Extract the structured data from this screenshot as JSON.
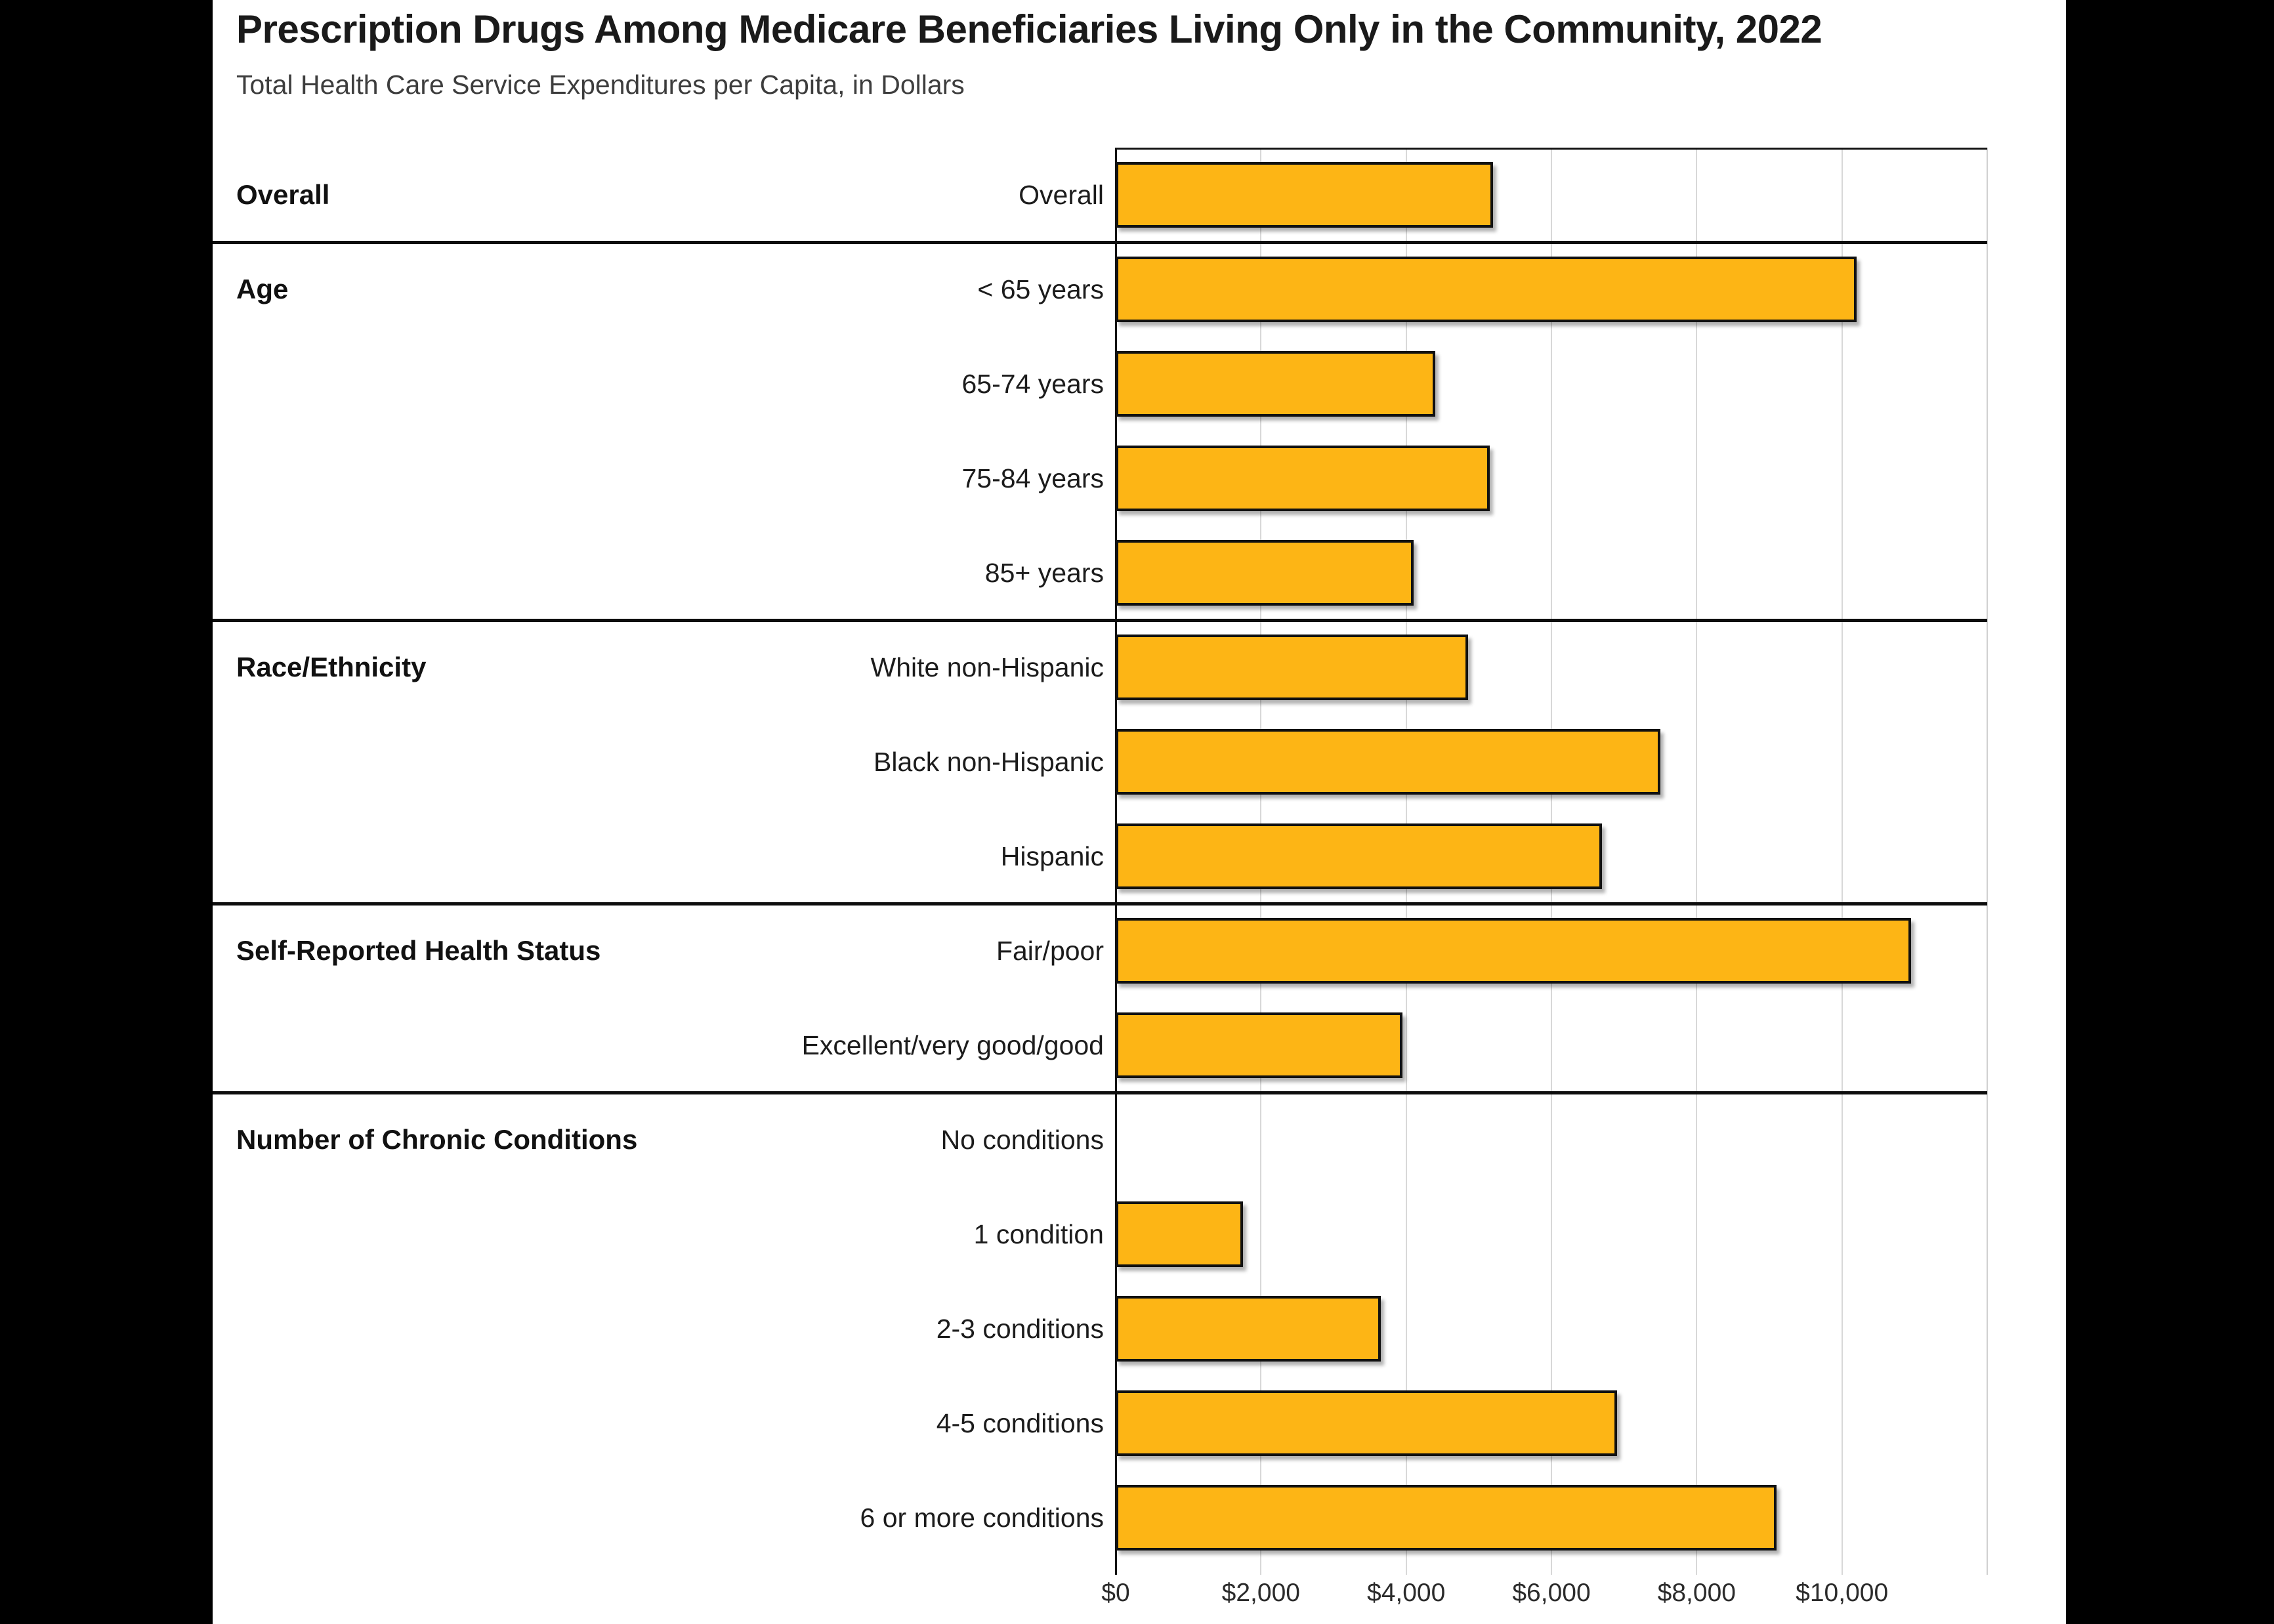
{
  "header": {
    "title": "Prescription Drugs Among Medicare Beneficiaries Living Only in the Community, 2022",
    "subtitle": "Total Health Care Service Expenditures per Capita, in Dollars"
  },
  "chart_data": {
    "type": "bar",
    "orientation": "horizontal",
    "title": "Prescription Drugs Among Medicare Beneficiaries Living Only in the Community, 2022",
    "subtitle": "Total Health Care Service Expenditures per Capita, in Dollars",
    "unit": "dollars per capita",
    "xlim": [
      0,
      12000
    ],
    "grid": true,
    "x_ticks": [
      {
        "value": 0,
        "label": "$0"
      },
      {
        "value": 2000,
        "label": "$2,000"
      },
      {
        "value": 4000,
        "label": "$4,000"
      },
      {
        "value": 6000,
        "label": "$6,000"
      },
      {
        "value": 8000,
        "label": "$8,000"
      },
      {
        "value": 10000,
        "label": "$10,000"
      }
    ],
    "x_gridlines": [
      2000,
      4000,
      6000,
      8000,
      10000,
      12000
    ],
    "bar_color": "#FDB515",
    "bar_border_color": "#111111",
    "sections": [
      {
        "label": "Overall",
        "rows": [
          {
            "label": "Overall",
            "value": 5200
          }
        ]
      },
      {
        "label": "Age",
        "rows": [
          {
            "label": "< 65 years",
            "value": 10200
          },
          {
            "label": "65-74 years",
            "value": 4400
          },
          {
            "label": "75-84 years",
            "value": 5150
          },
          {
            "label": "85+ years",
            "value": 4100
          }
        ]
      },
      {
        "label": "Race/Ethnicity",
        "rows": [
          {
            "label": "White non-Hispanic",
            "value": 4850
          },
          {
            "label": "Black non-Hispanic",
            "value": 7500
          },
          {
            "label": "Hispanic",
            "value": 6700
          }
        ]
      },
      {
        "label": "Self-Reported Health Status",
        "rows": [
          {
            "label": "Fair/poor",
            "value": 10950
          },
          {
            "label": "Excellent/very good/good",
            "value": 3950
          }
        ]
      },
      {
        "label": "Number of Chronic Conditions",
        "rows": [
          {
            "label": "No conditions",
            "value": 0
          },
          {
            "label": "1 condition",
            "value": 1750
          },
          {
            "label": "2-3 conditions",
            "value": 3650
          },
          {
            "label": "4-5 conditions",
            "value": 6900
          },
          {
            "label": "6 or more conditions",
            "value": 9100
          }
        ]
      }
    ]
  }
}
